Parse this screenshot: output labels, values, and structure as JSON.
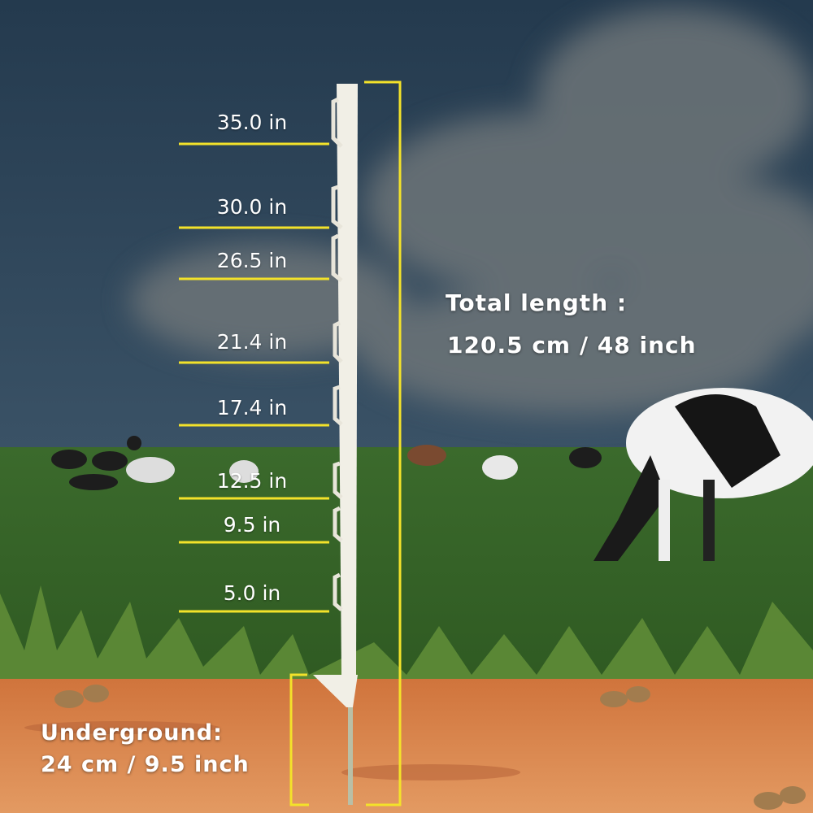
{
  "colors": {
    "sky": "#2b4257",
    "grass": "#3f6a2c",
    "soil": "#d9824a",
    "accent_yellow": "#f3e22a",
    "post": "#f1efe6"
  },
  "measurements": [
    {
      "label": "35.0 in"
    },
    {
      "label": "30.0 in"
    },
    {
      "label": "26.5 in"
    },
    {
      "label": "21.4 in"
    },
    {
      "label": "17.4 in"
    },
    {
      "label": "12.5 in"
    },
    {
      "label": "9.5 in"
    },
    {
      "label": "5.0 in"
    }
  ],
  "total": {
    "title": "Total length :",
    "value": "120.5 cm / 48 inch"
  },
  "underground": {
    "title": "Underground:",
    "value": "24 cm / 9.5 inch"
  }
}
